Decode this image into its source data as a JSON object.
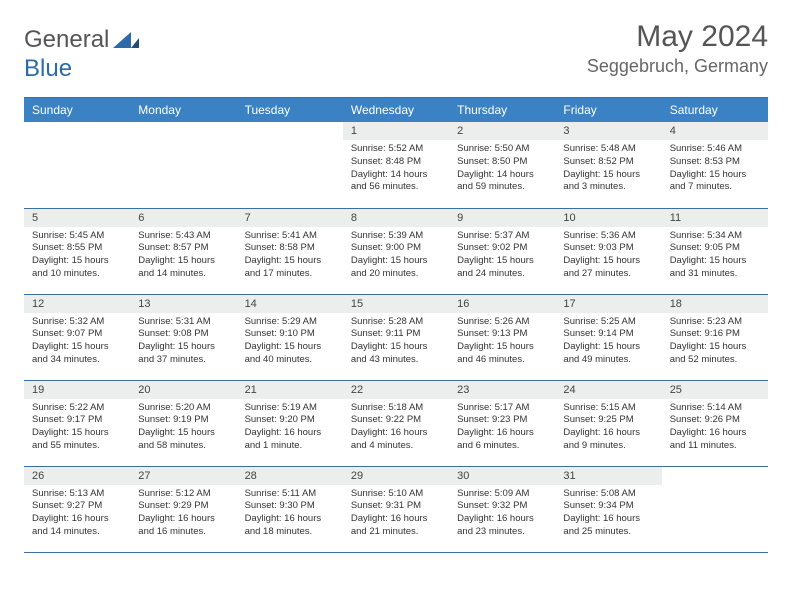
{
  "brand": {
    "name1": "General",
    "name2": "Blue"
  },
  "title": "May 2024",
  "location": "Seggebruch, Germany",
  "colors": {
    "header_bg": "#3b82c4",
    "header_text": "#ffffff",
    "rule": "#3b6fa0",
    "daynum_bg": "#eceded",
    "body_text": "#333333",
    "title_text": "#555555"
  },
  "weekdays": [
    "Sunday",
    "Monday",
    "Tuesday",
    "Wednesday",
    "Thursday",
    "Friday",
    "Saturday"
  ],
  "weeks": [
    [
      {
        "day": "",
        "lines": []
      },
      {
        "day": "",
        "lines": []
      },
      {
        "day": "",
        "lines": []
      },
      {
        "day": "1",
        "lines": [
          "Sunrise: 5:52 AM",
          "Sunset: 8:48 PM",
          "Daylight: 14 hours and 56 minutes."
        ]
      },
      {
        "day": "2",
        "lines": [
          "Sunrise: 5:50 AM",
          "Sunset: 8:50 PM",
          "Daylight: 14 hours and 59 minutes."
        ]
      },
      {
        "day": "3",
        "lines": [
          "Sunrise: 5:48 AM",
          "Sunset: 8:52 PM",
          "Daylight: 15 hours and 3 minutes."
        ]
      },
      {
        "day": "4",
        "lines": [
          "Sunrise: 5:46 AM",
          "Sunset: 8:53 PM",
          "Daylight: 15 hours and 7 minutes."
        ]
      }
    ],
    [
      {
        "day": "5",
        "lines": [
          "Sunrise: 5:45 AM",
          "Sunset: 8:55 PM",
          "Daylight: 15 hours and 10 minutes."
        ]
      },
      {
        "day": "6",
        "lines": [
          "Sunrise: 5:43 AM",
          "Sunset: 8:57 PM",
          "Daylight: 15 hours and 14 minutes."
        ]
      },
      {
        "day": "7",
        "lines": [
          "Sunrise: 5:41 AM",
          "Sunset: 8:58 PM",
          "Daylight: 15 hours and 17 minutes."
        ]
      },
      {
        "day": "8",
        "lines": [
          "Sunrise: 5:39 AM",
          "Sunset: 9:00 PM",
          "Daylight: 15 hours and 20 minutes."
        ]
      },
      {
        "day": "9",
        "lines": [
          "Sunrise: 5:37 AM",
          "Sunset: 9:02 PM",
          "Daylight: 15 hours and 24 minutes."
        ]
      },
      {
        "day": "10",
        "lines": [
          "Sunrise: 5:36 AM",
          "Sunset: 9:03 PM",
          "Daylight: 15 hours and 27 minutes."
        ]
      },
      {
        "day": "11",
        "lines": [
          "Sunrise: 5:34 AM",
          "Sunset: 9:05 PM",
          "Daylight: 15 hours and 31 minutes."
        ]
      }
    ],
    [
      {
        "day": "12",
        "lines": [
          "Sunrise: 5:32 AM",
          "Sunset: 9:07 PM",
          "Daylight: 15 hours and 34 minutes."
        ]
      },
      {
        "day": "13",
        "lines": [
          "Sunrise: 5:31 AM",
          "Sunset: 9:08 PM",
          "Daylight: 15 hours and 37 minutes."
        ]
      },
      {
        "day": "14",
        "lines": [
          "Sunrise: 5:29 AM",
          "Sunset: 9:10 PM",
          "Daylight: 15 hours and 40 minutes."
        ]
      },
      {
        "day": "15",
        "lines": [
          "Sunrise: 5:28 AM",
          "Sunset: 9:11 PM",
          "Daylight: 15 hours and 43 minutes."
        ]
      },
      {
        "day": "16",
        "lines": [
          "Sunrise: 5:26 AM",
          "Sunset: 9:13 PM",
          "Daylight: 15 hours and 46 minutes."
        ]
      },
      {
        "day": "17",
        "lines": [
          "Sunrise: 5:25 AM",
          "Sunset: 9:14 PM",
          "Daylight: 15 hours and 49 minutes."
        ]
      },
      {
        "day": "18",
        "lines": [
          "Sunrise: 5:23 AM",
          "Sunset: 9:16 PM",
          "Daylight: 15 hours and 52 minutes."
        ]
      }
    ],
    [
      {
        "day": "19",
        "lines": [
          "Sunrise: 5:22 AM",
          "Sunset: 9:17 PM",
          "Daylight: 15 hours and 55 minutes."
        ]
      },
      {
        "day": "20",
        "lines": [
          "Sunrise: 5:20 AM",
          "Sunset: 9:19 PM",
          "Daylight: 15 hours and 58 minutes."
        ]
      },
      {
        "day": "21",
        "lines": [
          "Sunrise: 5:19 AM",
          "Sunset: 9:20 PM",
          "Daylight: 16 hours and 1 minute."
        ]
      },
      {
        "day": "22",
        "lines": [
          "Sunrise: 5:18 AM",
          "Sunset: 9:22 PM",
          "Daylight: 16 hours and 4 minutes."
        ]
      },
      {
        "day": "23",
        "lines": [
          "Sunrise: 5:17 AM",
          "Sunset: 9:23 PM",
          "Daylight: 16 hours and 6 minutes."
        ]
      },
      {
        "day": "24",
        "lines": [
          "Sunrise: 5:15 AM",
          "Sunset: 9:25 PM",
          "Daylight: 16 hours and 9 minutes."
        ]
      },
      {
        "day": "25",
        "lines": [
          "Sunrise: 5:14 AM",
          "Sunset: 9:26 PM",
          "Daylight: 16 hours and 11 minutes."
        ]
      }
    ],
    [
      {
        "day": "26",
        "lines": [
          "Sunrise: 5:13 AM",
          "Sunset: 9:27 PM",
          "Daylight: 16 hours and 14 minutes."
        ]
      },
      {
        "day": "27",
        "lines": [
          "Sunrise: 5:12 AM",
          "Sunset: 9:29 PM",
          "Daylight: 16 hours and 16 minutes."
        ]
      },
      {
        "day": "28",
        "lines": [
          "Sunrise: 5:11 AM",
          "Sunset: 9:30 PM",
          "Daylight: 16 hours and 18 minutes."
        ]
      },
      {
        "day": "29",
        "lines": [
          "Sunrise: 5:10 AM",
          "Sunset: 9:31 PM",
          "Daylight: 16 hours and 21 minutes."
        ]
      },
      {
        "day": "30",
        "lines": [
          "Sunrise: 5:09 AM",
          "Sunset: 9:32 PM",
          "Daylight: 16 hours and 23 minutes."
        ]
      },
      {
        "day": "31",
        "lines": [
          "Sunrise: 5:08 AM",
          "Sunset: 9:34 PM",
          "Daylight: 16 hours and 25 minutes."
        ]
      },
      {
        "day": "",
        "lines": []
      }
    ]
  ]
}
